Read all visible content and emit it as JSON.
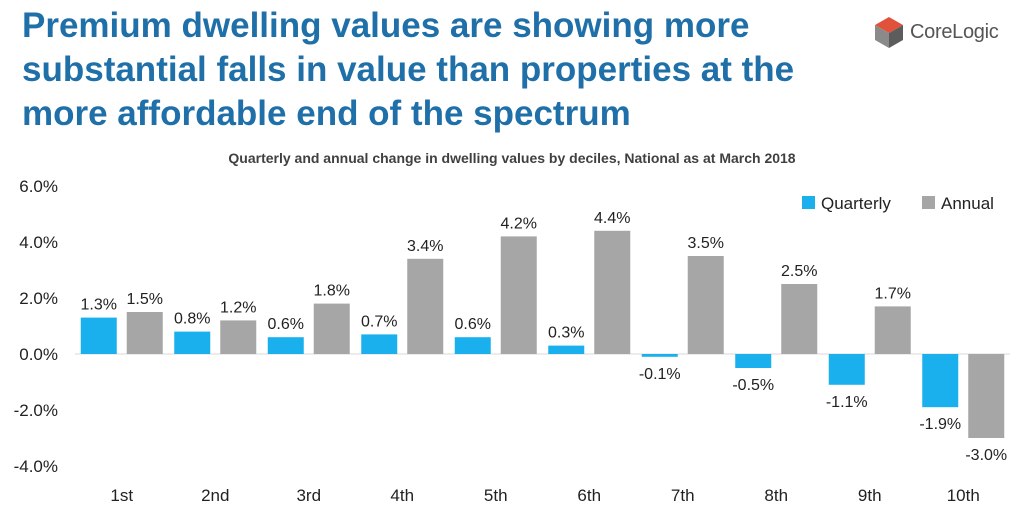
{
  "slide": {
    "title": "Premium dwelling values are showing more substantial falls in value than properties at the more affordable end of the spectrum"
  },
  "logo": {
    "text": "CoreLogic",
    "icon": "corelogic-cube-icon",
    "colors": [
      "#e2513a",
      "#8a8a8a",
      "#5c5c5c"
    ]
  },
  "chart_data": {
    "type": "bar",
    "title": "Quarterly and annual change in dwelling values by deciles, National as at March 2018",
    "xlabel": "",
    "ylabel": "",
    "categories": [
      "1st",
      "2nd",
      "3rd",
      "4th",
      "5th",
      "6th",
      "7th",
      "8th",
      "9th",
      "10th"
    ],
    "series": [
      {
        "name": "Quarterly",
        "color": "#1ab0ee",
        "values": [
          1.3,
          0.8,
          0.6,
          0.7,
          0.6,
          0.3,
          -0.1,
          -0.5,
          -1.1,
          -1.9
        ]
      },
      {
        "name": "Annual",
        "color": "#a6a6a6",
        "values": [
          1.5,
          1.2,
          1.8,
          3.4,
          4.2,
          4.4,
          3.5,
          2.5,
          1.7,
          -3.0
        ]
      }
    ],
    "data_labels": {
      "Quarterly": [
        "1.3%",
        "0.8%",
        "0.6%",
        "0.7%",
        "0.6%",
        "0.3%",
        "-0.1%",
        "-0.5%",
        "-1.1%",
        "-1.9%"
      ],
      "Annual": [
        "1.5%",
        "1.2%",
        "1.8%",
        "3.4%",
        "4.2%",
        "4.4%",
        "3.5%",
        "2.5%",
        "1.7%",
        "-3.0%"
      ]
    },
    "ylim": [
      -4.0,
      6.0
    ],
    "yticks": [
      6.0,
      4.0,
      2.0,
      0.0,
      -2.0,
      -4.0
    ],
    "ytick_labels": [
      "6.0%",
      "4.0%",
      "2.0%",
      "0.0%",
      "-2.0%",
      "-4.0%"
    ],
    "grid": false,
    "legend": {
      "position": "top-right",
      "entries": [
        "Quarterly",
        "Annual"
      ]
    }
  }
}
